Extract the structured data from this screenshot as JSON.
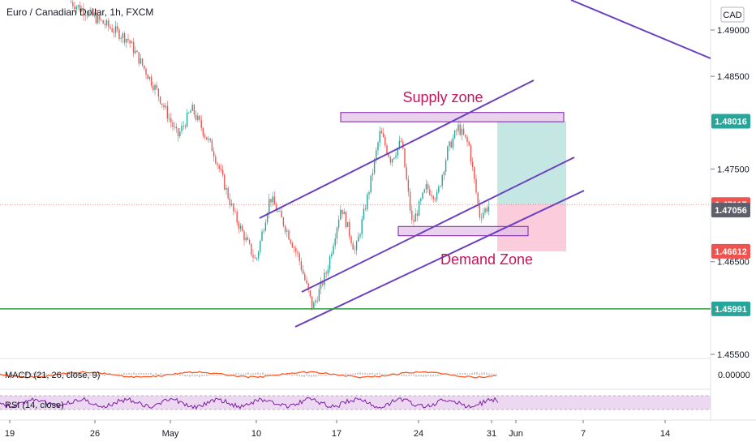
{
  "chart_data": {
    "type": "candlestick",
    "title": "Euro / Canadian Dollar, 1h, FXCM",
    "currency": "CAD",
    "y_ticks": [
      1.455,
      1.465,
      1.475,
      1.485,
      1.49
    ],
    "y_tick_labels": [
      "1.45500",
      "1.46500",
      "1.47500",
      "1.48500",
      "1.49000"
    ],
    "ylim": [
      1.454,
      1.491
    ],
    "x_tick_labels": [
      "19",
      "26",
      "May",
      "10",
      "17",
      "24",
      "31",
      "Jun",
      "7",
      "14"
    ],
    "price_path": [
      [
        0.1,
        1.493
      ],
      [
        0.18,
        1.489
      ],
      [
        0.22,
        1.4835
      ],
      [
        0.25,
        1.4785
      ],
      [
        0.27,
        1.4815
      ],
      [
        0.3,
        1.477
      ],
      [
        0.33,
        1.47
      ],
      [
        0.36,
        1.465
      ],
      [
        0.38,
        1.472
      ],
      [
        0.4,
        1.469
      ],
      [
        0.42,
        1.4655
      ],
      [
        0.44,
        1.46
      ],
      [
        0.46,
        1.464
      ],
      [
        0.48,
        1.471
      ],
      [
        0.5,
        1.466
      ],
      [
        0.52,
        1.473
      ],
      [
        0.535,
        1.479
      ],
      [
        0.55,
        1.476
      ],
      [
        0.565,
        1.478
      ],
      [
        0.58,
        1.469
      ],
      [
        0.6,
        1.473
      ],
      [
        0.615,
        1.472
      ],
      [
        0.63,
        1.477
      ],
      [
        0.645,
        1.4795
      ],
      [
        0.66,
        1.4775
      ],
      [
        0.675,
        1.47
      ],
      [
        0.69,
        1.4712
      ]
    ],
    "price_tags": [
      {
        "label": "1.48016",
        "value": 1.48016,
        "color": "#26a69a"
      },
      {
        "label": "1.47117",
        "value": 1.47117,
        "color": "#ef5350"
      },
      {
        "label": "1.47056",
        "value": 1.47056,
        "color": "#5d606b"
      },
      {
        "label": "1.46612",
        "value": 1.46612,
        "color": "#ef5350"
      },
      {
        "label": "1.45991",
        "value": 1.45991,
        "color": "#26a69a"
      }
    ],
    "support_level": 1.45991,
    "annotations": {
      "supply_label": "Supply zone",
      "demand_label": "Demand Zone",
      "supply_zone": [
        1.4801,
        1.4811
      ],
      "demand_zone": [
        1.4678,
        1.4688
      ]
    },
    "position": {
      "entry": 1.47117,
      "target": 1.48016,
      "stop": 1.46612
    },
    "indicators": {
      "macd_label": "MACD (21, 26, close, 9)",
      "macd_value": "0.00000",
      "rsi_label": "RSI (14, close)"
    }
  }
}
